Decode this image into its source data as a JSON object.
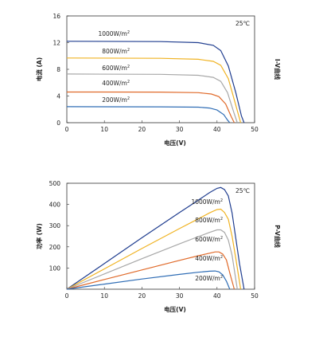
{
  "chart_data": [
    {
      "type": "line",
      "xlabel": "电压(V)",
      "ylabel": "电流 (A)",
      "side_label": "I-V曲线",
      "temperature_label": "25℃",
      "xlim": [
        0,
        50
      ],
      "ylim": [
        0,
        16
      ],
      "xticks": [
        "0",
        "10",
        "20",
        "30",
        "40",
        "50"
      ],
      "yticks": [
        "0",
        "4",
        "8",
        "12",
        "16"
      ],
      "grid": false,
      "series": [
        {
          "name": "1000W/m2",
          "color": "#1f3d8f",
          "points": [
            [
              0,
              12.2
            ],
            [
              25,
              12.15
            ],
            [
              35,
              12.0
            ],
            [
              39,
              11.6
            ],
            [
              41,
              10.8
            ],
            [
              43,
              8.5
            ],
            [
              45,
              4.5
            ],
            [
              46.5,
              1.0
            ],
            [
              47.2,
              0
            ]
          ]
        },
        {
          "name": "800W/m2",
          "color": "#f0b323",
          "points": [
            [
              0,
              9.7
            ],
            [
              25,
              9.65
            ],
            [
              35,
              9.5
            ],
            [
              39,
              9.2
            ],
            [
              41,
              8.6
            ],
            [
              43,
              6.6
            ],
            [
              44.8,
              3.0
            ],
            [
              46.3,
              0
            ]
          ]
        },
        {
          "name": "600W/m2",
          "color": "#a8a8a8",
          "points": [
            [
              0,
              7.3
            ],
            [
              25,
              7.25
            ],
            [
              35,
              7.1
            ],
            [
              39,
              6.8
            ],
            [
              41,
              6.2
            ],
            [
              42.8,
              4.5
            ],
            [
              44.5,
              1.5
            ],
            [
              45.4,
              0
            ]
          ]
        },
        {
          "name": "400W/m2",
          "color": "#e06a2a",
          "points": [
            [
              0,
              4.6
            ],
            [
              25,
              4.58
            ],
            [
              35,
              4.5
            ],
            [
              38.5,
              4.3
            ],
            [
              40.5,
              3.9
            ],
            [
              42.3,
              2.8
            ],
            [
              43.8,
              0.9
            ],
            [
              44.6,
              0
            ]
          ]
        },
        {
          "name": "200W/m2",
          "color": "#2f6db5",
          "points": [
            [
              0,
              2.4
            ],
            [
              25,
              2.38
            ],
            [
              35,
              2.33
            ],
            [
              38,
              2.2
            ],
            [
              40,
              1.9
            ],
            [
              41.8,
              1.2
            ],
            [
              42.8,
              0.4
            ],
            [
              43.4,
              0
            ]
          ]
        }
      ]
    },
    {
      "type": "line",
      "xlabel": "电压(V)",
      "ylabel": "功率 (W)",
      "side_label": "P-V曲线",
      "temperature_label": "25℃",
      "xlim": [
        0,
        50
      ],
      "ylim": [
        0,
        500
      ],
      "xticks": [
        "0",
        "10",
        "20",
        "30",
        "40",
        "50"
      ],
      "yticks": [
        "100",
        "200",
        "300",
        "400",
        "500"
      ],
      "grid": false,
      "series": [
        {
          "name": "1000W/m2",
          "color": "#1f3d8f",
          "points": [
            [
              0,
              0
            ],
            [
              10,
              121
            ],
            [
              20,
              243
            ],
            [
              30,
              362
            ],
            [
              35,
              420
            ],
            [
              38,
              456
            ],
            [
              40,
              476
            ],
            [
              41,
              480
            ],
            [
              42,
              470
            ],
            [
              43,
              440
            ],
            [
              44,
              360
            ],
            [
              45,
              240
            ],
            [
              46,
              120
            ],
            [
              47.2,
              0
            ]
          ]
        },
        {
          "name": "800W/m2",
          "color": "#f0b323",
          "points": [
            [
              0,
              0
            ],
            [
              10,
              96
            ],
            [
              20,
              192
            ],
            [
              30,
              286
            ],
            [
              35,
              332
            ],
            [
              38,
              360
            ],
            [
              40,
              376
            ],
            [
              41,
              378
            ],
            [
              42,
              362
            ],
            [
              43,
              330
            ],
            [
              44,
              250
            ],
            [
              45,
              145
            ],
            [
              46.3,
              0
            ]
          ]
        },
        {
          "name": "600W/m2",
          "color": "#a8a8a8",
          "points": [
            [
              0,
              0
            ],
            [
              10,
              72
            ],
            [
              20,
              144
            ],
            [
              30,
              214
            ],
            [
              35,
              248
            ],
            [
              38,
              268
            ],
            [
              40,
              280
            ],
            [
              41,
              280
            ],
            [
              42,
              268
            ],
            [
              43,
              232
            ],
            [
              44,
              160
            ],
            [
              45.4,
              0
            ]
          ]
        },
        {
          "name": "400W/m2",
          "color": "#e06a2a",
          "points": [
            [
              0,
              0
            ],
            [
              10,
              46
            ],
            [
              20,
              91
            ],
            [
              30,
              136
            ],
            [
              35,
              158
            ],
            [
              38,
              170
            ],
            [
              39.5,
              176
            ],
            [
              40.5,
              176
            ],
            [
              41.5,
              166
            ],
            [
              42.5,
              138
            ],
            [
              43.5,
              70
            ],
            [
              44.6,
              0
            ]
          ]
        },
        {
          "name": "200W/m2",
          "color": "#2f6db5",
          "points": [
            [
              0,
              0
            ],
            [
              10,
              24
            ],
            [
              20,
              48
            ],
            [
              30,
              70
            ],
            [
              35,
              80
            ],
            [
              38,
              85
            ],
            [
              39.5,
              86
            ],
            [
              40.5,
              82
            ],
            [
              41.5,
              68
            ],
            [
              42.5,
              38
            ],
            [
              43.4,
              0
            ]
          ]
        }
      ]
    }
  ]
}
